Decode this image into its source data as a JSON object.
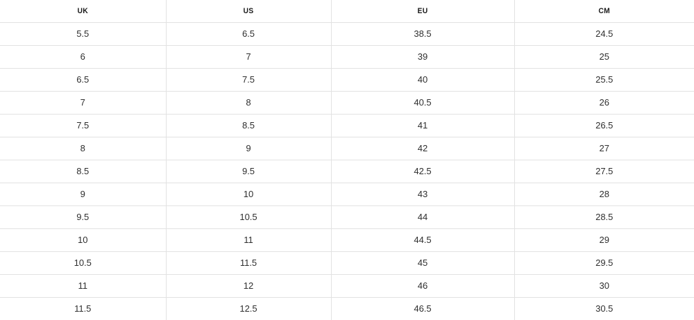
{
  "chart_data": {
    "type": "table",
    "title": "",
    "columns": [
      "UK",
      "US",
      "EU",
      "CM"
    ],
    "rows": [
      [
        "5.5",
        "6.5",
        "38.5",
        "24.5"
      ],
      [
        "6",
        "7",
        "39",
        "25"
      ],
      [
        "6.5",
        "7.5",
        "40",
        "25.5"
      ],
      [
        "7",
        "8",
        "40.5",
        "26"
      ],
      [
        "7.5",
        "8.5",
        "41",
        "26.5"
      ],
      [
        "8",
        "9",
        "42",
        "27"
      ],
      [
        "8.5",
        "9.5",
        "42.5",
        "27.5"
      ],
      [
        "9",
        "10",
        "43",
        "28"
      ],
      [
        "9.5",
        "10.5",
        "44",
        "28.5"
      ],
      [
        "10",
        "11",
        "44.5",
        "29"
      ],
      [
        "10.5",
        "11.5",
        "45",
        "29.5"
      ],
      [
        "11",
        "12",
        "46",
        "30"
      ],
      [
        "11.5",
        "12.5",
        "46.5",
        "30.5"
      ]
    ]
  },
  "colors": {
    "background": "#ffffff",
    "grid_border": "#e2e2e2",
    "header_text": "#1a1a1a",
    "cell_text": "#2e2e2e"
  }
}
